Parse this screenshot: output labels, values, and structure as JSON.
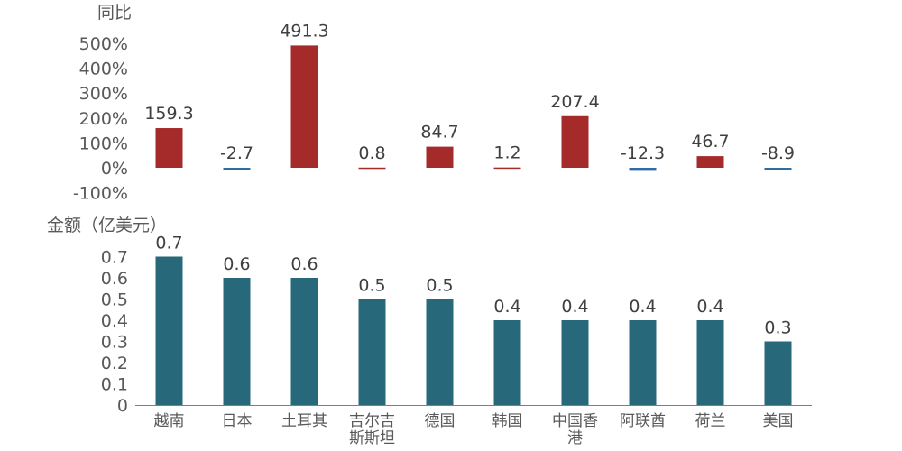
{
  "chart_data": [
    {
      "type": "bar",
      "ylabel": "同比",
      "categories": [
        "越南",
        "日本",
        "土耳其",
        "吉尔吉斯斯坦",
        "德国",
        "韩国",
        "中国香港",
        "阿联酋",
        "荷兰",
        "美国"
      ],
      "values": [
        159.3,
        -2.7,
        491.3,
        0.8,
        84.7,
        1.2,
        207.4,
        -12.3,
        46.7,
        -8.9
      ],
      "value_labels": [
        "159.3",
        "-2.7",
        "491.3",
        "0.8",
        "84.7",
        "1.2",
        "207.4",
        "-12.3",
        "46.7",
        "-8.9"
      ],
      "yticks": [
        "-100%",
        "0%",
        "100%",
        "200%",
        "300%",
        "400%",
        "500%"
      ],
      "ylim": [
        -100,
        500
      ],
      "colors": {
        "positive": "#a52a2a",
        "negative": "#2e6da4"
      },
      "grid": false
    },
    {
      "type": "bar",
      "ylabel": "金额（亿美元）",
      "categories": [
        "越南",
        "日本",
        "土耳其",
        "吉尔吉斯斯坦",
        "德国",
        "韩国",
        "中国香港",
        "阿联酋",
        "荷兰",
        "美国"
      ],
      "category_labels": [
        [
          "越南"
        ],
        [
          "日本"
        ],
        [
          "土耳其"
        ],
        [
          "吉尔吉",
          "斯斯坦"
        ],
        [
          "德国"
        ],
        [
          "韩国"
        ],
        [
          "中国香",
          "港"
        ],
        [
          "阿联酋"
        ],
        [
          "荷兰"
        ],
        [
          "美国"
        ]
      ],
      "values": [
        0.7,
        0.6,
        0.6,
        0.5,
        0.5,
        0.4,
        0.4,
        0.4,
        0.4,
        0.3
      ],
      "value_labels": [
        "0.7",
        "0.6",
        "0.6",
        "0.5",
        "0.5",
        "0.4",
        "0.4",
        "0.4",
        "0.4",
        "0.3"
      ],
      "yticks": [
        "0",
        "0.1",
        "0.2",
        "0.3",
        "0.4",
        "0.5",
        "0.6",
        "0.7"
      ],
      "ylim": [
        0,
        0.7
      ],
      "colors": {
        "bar": "#27697a",
        "axis": "#7f7f7f"
      },
      "grid": false
    }
  ]
}
